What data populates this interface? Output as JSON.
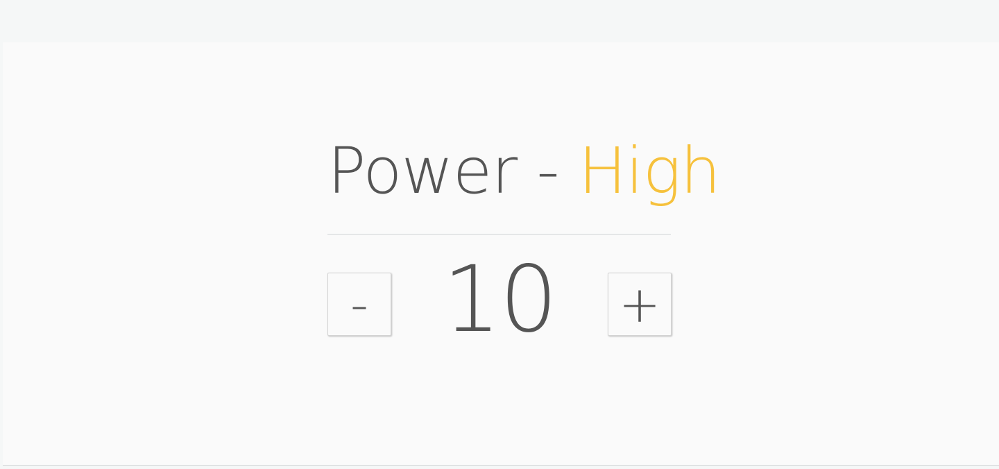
{
  "header": {
    "label": "Power",
    "separator": " - ",
    "level": "High"
  },
  "stepper": {
    "decrement_label": "-",
    "value": "10",
    "increment_label": "+"
  },
  "colors": {
    "text": "#555555",
    "accent": "#f6c13c",
    "background": "#fafafa",
    "divider": "#cfd3d4"
  }
}
